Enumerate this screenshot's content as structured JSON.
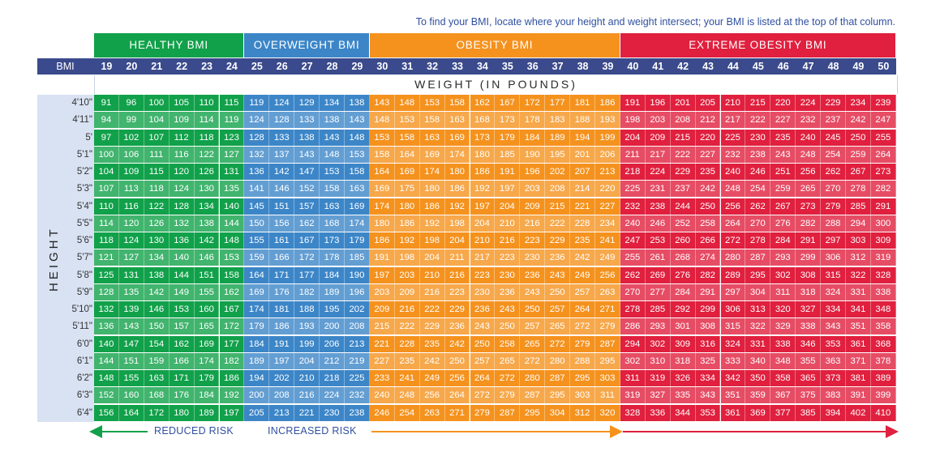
{
  "instruction": "To find your BMI, locate where your height and weight intersect; your BMI is listed at the top of that column.",
  "categories": [
    {
      "label": "HEALTHY BMI",
      "from": 19,
      "to": 24,
      "color": "#11a14a"
    },
    {
      "label": "OVERWEIGHT BMI",
      "from": 25,
      "to": 29,
      "color": "#3c86c8"
    },
    {
      "label": "OBESITY BMI",
      "from": 30,
      "to": 39,
      "color": "#f5921e"
    },
    {
      "label": "EXTREME OBESITY BMI",
      "from": 40,
      "to": 50,
      "color": "#e0203e"
    }
  ],
  "bmi_row_label": "BMI",
  "weight_label": "WEIGHT (IN POUNDS)",
  "height_label": "HEIGHT",
  "risk": {
    "reduced": "REDUCED RISK",
    "increased": "INCREASED RISK"
  },
  "colors": {
    "header_bar": "#3a4a8c",
    "left_panel": "#d8e2f3"
  },
  "chart_data": {
    "type": "table",
    "columns": [
      19,
      20,
      21,
      22,
      23,
      24,
      25,
      26,
      27,
      28,
      29,
      30,
      31,
      32,
      33,
      34,
      35,
      36,
      37,
      38,
      39,
      40,
      41,
      42,
      43,
      44,
      45,
      46,
      47,
      48,
      49,
      50
    ],
    "rows": [
      {
        "height": "4'10\"",
        "values": [
          91,
          96,
          100,
          105,
          110,
          115,
          119,
          124,
          129,
          134,
          138,
          143,
          148,
          153,
          158,
          162,
          167,
          172,
          177,
          181,
          186,
          191,
          196,
          201,
          205,
          210,
          215,
          220,
          224,
          229,
          234,
          239
        ]
      },
      {
        "height": "4'11\"",
        "values": [
          94,
          99,
          104,
          109,
          114,
          119,
          124,
          128,
          133,
          138,
          143,
          148,
          153,
          158,
          163,
          168,
          173,
          178,
          183,
          188,
          193,
          198,
          203,
          208,
          212,
          217,
          222,
          227,
          232,
          237,
          242,
          247
        ]
      },
      {
        "height": "5'",
        "values": [
          97,
          102,
          107,
          112,
          118,
          123,
          128,
          133,
          138,
          143,
          148,
          153,
          158,
          163,
          169,
          173,
          179,
          184,
          189,
          194,
          199,
          204,
          209,
          215,
          220,
          225,
          230,
          235,
          240,
          245,
          250,
          255
        ]
      },
      {
        "height": "5'1\"",
        "values": [
          100,
          106,
          111,
          116,
          122,
          127,
          132,
          137,
          143,
          148,
          153,
          158,
          164,
          169,
          174,
          180,
          185,
          190,
          195,
          201,
          206,
          211,
          217,
          222,
          227,
          232,
          238,
          243,
          248,
          254,
          259,
          264
        ]
      },
      {
        "height": "5'2\"",
        "values": [
          104,
          109,
          115,
          120,
          126,
          131,
          136,
          142,
          147,
          153,
          158,
          164,
          169,
          174,
          180,
          186,
          191,
          196,
          202,
          207,
          213,
          218,
          224,
          229,
          235,
          240,
          246,
          251,
          256,
          262,
          267,
          273
        ]
      },
      {
        "height": "5'3\"",
        "values": [
          107,
          113,
          118,
          124,
          130,
          135,
          141,
          146,
          152,
          158,
          163,
          169,
          175,
          180,
          186,
          192,
          197,
          203,
          208,
          214,
          220,
          225,
          231,
          237,
          242,
          248,
          254,
          259,
          265,
          270,
          278,
          282
        ]
      },
      {
        "height": "5'4\"",
        "values": [
          110,
          116,
          122,
          128,
          134,
          140,
          145,
          151,
          157,
          163,
          169,
          174,
          180,
          186,
          192,
          197,
          204,
          209,
          215,
          221,
          227,
          232,
          238,
          244,
          250,
          256,
          262,
          267,
          273,
          279,
          285,
          291
        ]
      },
      {
        "height": "5'5\"",
        "values": [
          114,
          120,
          126,
          132,
          138,
          144,
          150,
          156,
          162,
          168,
          174,
          180,
          186,
          192,
          198,
          204,
          210,
          216,
          222,
          228,
          234,
          240,
          246,
          252,
          258,
          264,
          270,
          276,
          282,
          288,
          294,
          300
        ]
      },
      {
        "height": "5'6\"",
        "values": [
          118,
          124,
          130,
          136,
          142,
          148,
          155,
          161,
          167,
          173,
          179,
          186,
          192,
          198,
          204,
          210,
          216,
          223,
          229,
          235,
          241,
          247,
          253,
          260,
          266,
          272,
          278,
          284,
          291,
          297,
          303,
          309
        ]
      },
      {
        "height": "5'7\"",
        "values": [
          121,
          127,
          134,
          140,
          146,
          153,
          159,
          166,
          172,
          178,
          185,
          191,
          198,
          204,
          211,
          217,
          223,
          230,
          236,
          242,
          249,
          255,
          261,
          268,
          274,
          280,
          287,
          293,
          299,
          306,
          312,
          319
        ]
      },
      {
        "height": "5'8\"",
        "values": [
          125,
          131,
          138,
          144,
          151,
          158,
          164,
          171,
          177,
          184,
          190,
          197,
          203,
          210,
          216,
          223,
          230,
          236,
          243,
          249,
          256,
          262,
          269,
          276,
          282,
          289,
          295,
          302,
          308,
          315,
          322,
          328
        ]
      },
      {
        "height": "5'9\"",
        "values": [
          128,
          135,
          142,
          149,
          155,
          162,
          169,
          176,
          182,
          189,
          196,
          203,
          209,
          216,
          223,
          230,
          236,
          243,
          250,
          257,
          263,
          270,
          277,
          284,
          291,
          297,
          304,
          311,
          318,
          324,
          331,
          338
        ]
      },
      {
        "height": "5'10\"",
        "values": [
          132,
          139,
          146,
          153,
          160,
          167,
          174,
          181,
          188,
          195,
          202,
          209,
          216,
          222,
          229,
          236,
          243,
          250,
          257,
          264,
          271,
          278,
          285,
          292,
          299,
          306,
          313,
          320,
          327,
          334,
          341,
          348
        ]
      },
      {
        "height": "5'11\"",
        "values": [
          136,
          143,
          150,
          157,
          165,
          172,
          179,
          186,
          193,
          200,
          208,
          215,
          222,
          229,
          236,
          243,
          250,
          257,
          265,
          272,
          279,
          286,
          293,
          301,
          308,
          315,
          322,
          329,
          338,
          343,
          351,
          358
        ]
      },
      {
        "height": "6'0\"",
        "values": [
          140,
          147,
          154,
          162,
          169,
          177,
          184,
          191,
          199,
          206,
          213,
          221,
          228,
          235,
          242,
          250,
          258,
          265,
          272,
          279,
          287,
          294,
          302,
          309,
          316,
          324,
          331,
          338,
          346,
          353,
          361,
          368
        ]
      },
      {
        "height": "6'1\"",
        "values": [
          144,
          151,
          159,
          166,
          174,
          182,
          189,
          197,
          204,
          212,
          219,
          227,
          235,
          242,
          250,
          257,
          265,
          272,
          280,
          288,
          295,
          302,
          310,
          318,
          325,
          333,
          340,
          348,
          355,
          363,
          371,
          378
        ]
      },
      {
        "height": "6'2\"",
        "values": [
          148,
          155,
          163,
          171,
          179,
          186,
          194,
          202,
          210,
          218,
          225,
          233,
          241,
          249,
          256,
          264,
          272,
          280,
          287,
          295,
          303,
          311,
          319,
          326,
          334,
          342,
          350,
          358,
          365,
          373,
          381,
          389
        ]
      },
      {
        "height": "6'3\"",
        "values": [
          152,
          160,
          168,
          176,
          184,
          192,
          200,
          208,
          216,
          224,
          232,
          240,
          248,
          256,
          264,
          272,
          279,
          287,
          295,
          303,
          311,
          319,
          327,
          335,
          343,
          351,
          359,
          367,
          375,
          383,
          391,
          399
        ]
      },
      {
        "height": "6'4\"",
        "values": [
          156,
          164,
          172,
          180,
          189,
          197,
          205,
          213,
          221,
          230,
          238,
          246,
          254,
          263,
          271,
          279,
          287,
          295,
          304,
          312,
          320,
          328,
          336,
          344,
          353,
          361,
          369,
          377,
          385,
          394,
          402,
          410
        ]
      }
    ]
  }
}
